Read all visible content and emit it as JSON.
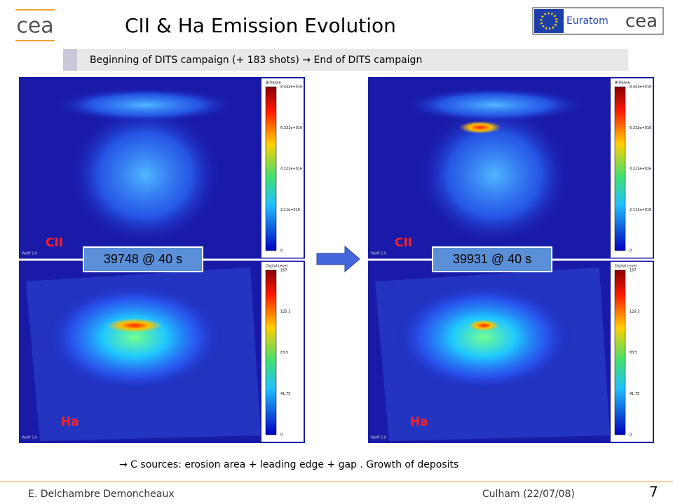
{
  "header": {
    "logo": "cea",
    "title": "CII & Ha Emission Evolution",
    "euratom": "Euratom",
    "logo_right": "cea"
  },
  "banner": "Beginning of DITS campaign (+ 183 shots) → End of DITS campaign",
  "panels": [
    {
      "shot": "39748 @ 40 s",
      "cii": {
        "label": "CII",
        "colorbar_title": "Brillance",
        "colorbar_ticks": [
          "8.442e+016",
          "6.331e+016",
          "4.221e+016",
          "2.11e+016",
          "0"
        ],
        "watermark": "Wolff 2.0"
      },
      "ha": {
        "label": "Ha",
        "colorbar_title": "Digital Level",
        "colorbar_ticks": [
          "167",
          "125.3",
          "83.5",
          "41.75",
          "0"
        ],
        "watermark": "Wolff 2.0"
      }
    },
    {
      "shot": "39931 @ 40 s",
      "cii": {
        "label": "CII",
        "colorbar_title": "Brillance",
        "colorbar_ticks": [
          "8.443e+016",
          "6.332e+016",
          "4.221e+016",
          "2.111e+016",
          "0"
        ],
        "watermark": "Wolff 2.0"
      },
      "ha": {
        "label": "Ha",
        "colorbar_title": "Digital Level",
        "colorbar_ticks": [
          "167",
          "125.3",
          "83.5",
          "41.75",
          "0"
        ],
        "watermark": "Wolff 2.0"
      }
    }
  ],
  "caption": "→ C sources: erosion area + leading edge + gap . Growth of deposits",
  "footer": {
    "author": "E. Delchambre Demoncheaux",
    "place": "Culham (22/07/08)",
    "page": "7"
  }
}
